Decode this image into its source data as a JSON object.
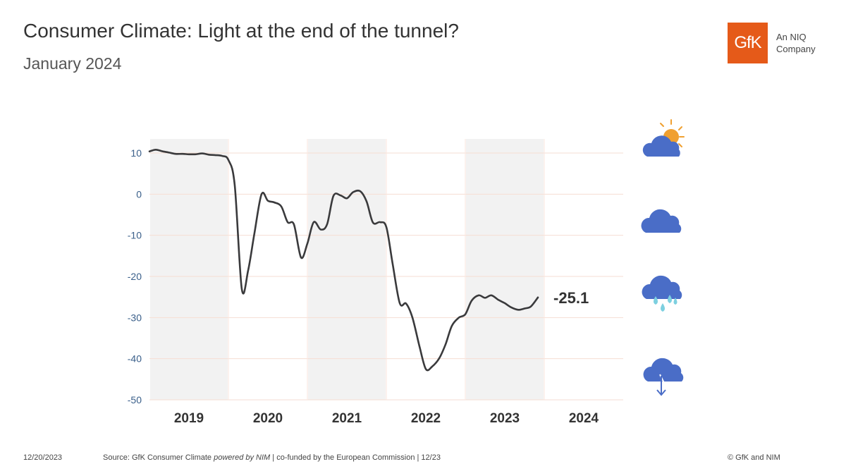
{
  "header": {
    "title": "Consumer Climate: Light at the end of the tunnel?",
    "subtitle": "January 2024"
  },
  "logo": {
    "mark": "GfK",
    "tagline_1": "An NIQ",
    "tagline_2": "Company",
    "color": "#e55a19"
  },
  "chart_data": {
    "type": "line",
    "title": "Consumer Climate: Light at the end of the tunnel?",
    "subtitle": "January 2024",
    "xlabel": "",
    "ylabel": "",
    "ylim": [
      -50,
      10
    ],
    "y_ticks": [
      10,
      0,
      -10,
      -20,
      -30,
      -40,
      -50
    ],
    "categories": [
      "2019",
      "2020",
      "2021",
      "2022",
      "2023",
      "2024"
    ],
    "shaded_years": [
      "2019",
      "2021",
      "2023"
    ],
    "grid": true,
    "series": [
      {
        "name": "Consumer Climate",
        "color": "#3a3a3c",
        "x": [
          2019.0,
          2019.08,
          2019.17,
          2019.25,
          2019.33,
          2019.42,
          2019.5,
          2019.58,
          2019.67,
          2019.75,
          2019.83,
          2019.92,
          2020.0,
          2020.08,
          2020.17,
          2020.25,
          2020.33,
          2020.42,
          2020.5,
          2020.58,
          2020.67,
          2020.75,
          2020.83,
          2020.92,
          2021.0,
          2021.08,
          2021.17,
          2021.25,
          2021.33,
          2021.42,
          2021.5,
          2021.58,
          2021.67,
          2021.75,
          2021.83,
          2021.92,
          2022.0,
          2022.08,
          2022.17,
          2022.25,
          2022.33,
          2022.42,
          2022.5,
          2022.58,
          2022.67,
          2022.75,
          2022.83,
          2022.92,
          2023.0,
          2023.08,
          2023.17,
          2023.25,
          2023.33,
          2023.42,
          2023.5,
          2023.58,
          2023.67,
          2023.75,
          2023.83,
          2023.92
        ],
        "values": [
          10.4,
          10.8,
          10.4,
          10.1,
          9.8,
          9.8,
          9.7,
          9.7,
          9.9,
          9.6,
          9.5,
          9.3,
          8.3,
          2.1,
          -23.1,
          -18.5,
          -9.4,
          0.0,
          -1.6,
          -2.0,
          -3.0,
          -6.8,
          -7.4,
          -15.4,
          -12.0,
          -6.8,
          -8.6,
          -7.3,
          -0.4,
          -0.3,
          -1.0,
          0.5,
          0.7,
          -1.8,
          -6.9,
          -6.8,
          -8.0,
          -17.0,
          -26.5,
          -26.6,
          -30.0,
          -37.0,
          -42.5,
          -41.9,
          -39.9,
          -36.5,
          -32.0,
          -30.0,
          -29.2,
          -25.9,
          -24.6,
          -25.2,
          -24.6,
          -25.7,
          -26.5,
          -27.5,
          -28.1,
          -27.8,
          -27.3,
          -25.1
        ]
      }
    ],
    "end_label": "-25.1",
    "status_icons": [
      "sun-behind-cloud-icon",
      "cloud-icon",
      "rain-cloud-icon",
      "cloud-arrow-down-icon"
    ]
  },
  "icon_colors": {
    "cloud": "#4a6dc7",
    "sun": "#f0a030",
    "rain": "#7dd0e0"
  },
  "footer": {
    "date": "12/20/2023",
    "source_prefix": "Source: GfK Consumer Climate ",
    "source_italic": "powered by NIM",
    "source_suffix": " | co-funded by the European Commission | 12/23",
    "copyright": "© GfK and NIM"
  }
}
